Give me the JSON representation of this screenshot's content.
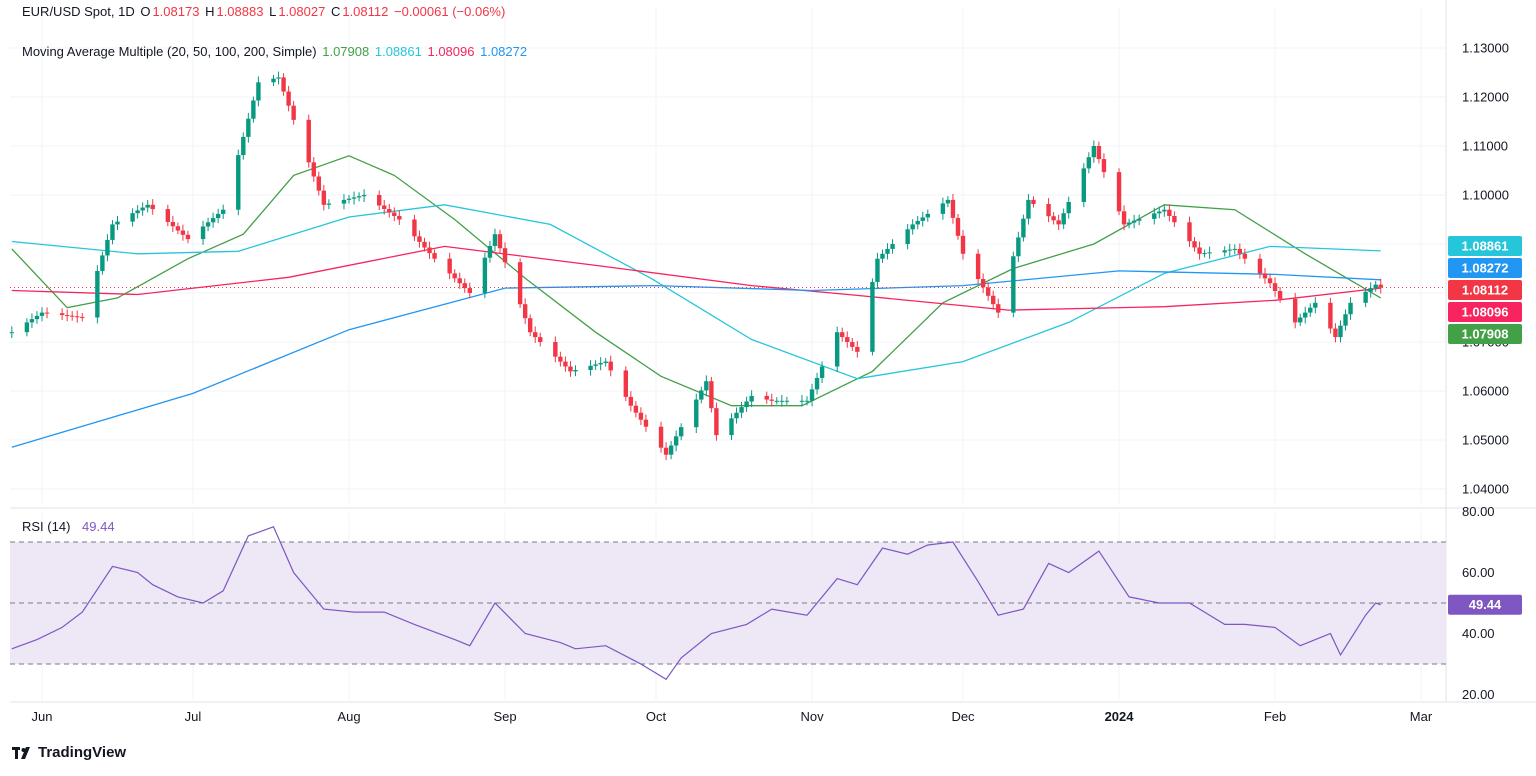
{
  "header": {
    "symbol": "EUR/USD Spot, 1D",
    "open_label": "O",
    "open": "1.08173",
    "high_label": "H",
    "high": "1.08883",
    "low_label": "L",
    "low": "1.08027",
    "close_label": "C",
    "close": "1.08112",
    "change": "−0.00061 (−0.06%)",
    "ma_title": "Moving Average Multiple (20, 50, 100, 200, Simple)",
    "ma_values": [
      "1.07908",
      "1.08861",
      "1.08096",
      "1.08272"
    ]
  },
  "rsi_header": {
    "title": "RSI (14)",
    "value": "49.44"
  },
  "colors": {
    "up": "#089981",
    "down": "#f23645",
    "ma20": "#43a047",
    "ma50": "#26c6da",
    "ma100": "#f7245f",
    "ma200": "#2196f3",
    "rsi": "#7e57c2",
    "rsi_band": "#ede7f6"
  },
  "chart_data": [
    {
      "type": "candlestick",
      "title": "EUR/USD Spot, 1D",
      "ylim": [
        1.035,
        1.135
      ],
      "yticks": [
        "1.13000",
        "1.12000",
        "1.11000",
        "1.10000",
        "1.09000",
        "1.08000",
        "1.07000",
        "1.06000",
        "1.05000",
        "1.04000"
      ],
      "ytick_values": [
        1.13,
        1.12,
        1.11,
        1.1,
        1.09,
        1.08,
        1.07,
        1.06,
        1.05,
        1.04
      ],
      "xticks": [
        "Jun",
        "Jul",
        "Aug",
        "Sep",
        "Oct",
        "Nov",
        "Dec",
        "2024",
        "Feb",
        "Mar"
      ],
      "xtick_dates": [
        "2023-06-01",
        "2023-07-01",
        "2023-08-01",
        "2023-09-01",
        "2023-10-01",
        "2023-11-01",
        "2023-12-01",
        "2024-01-01",
        "2024-02-01",
        "2024-03-01"
      ],
      "x_start_date": "2023-05-26",
      "close_line": 1.08112,
      "price_labels": [
        {
          "text": "1.08861",
          "value": 1.08861,
          "color": "#26c6da"
        },
        {
          "text": "1.08272",
          "value": 1.08272,
          "color": "#2196f3"
        },
        {
          "text": "1.08112",
          "value": 1.08112,
          "color": "#f23645"
        },
        {
          "text": "1.08096",
          "value": 1.08096,
          "color": "#f7245f"
        },
        {
          "text": "1.07908",
          "value": 1.07908,
          "color": "#43a047"
        }
      ],
      "close_series": [
        {
          "date": "2023-05-26",
          "close": 1.072
        },
        {
          "date": "2023-06-01",
          "close": 1.076
        },
        {
          "date": "2023-06-09",
          "close": 1.075
        },
        {
          "date": "2023-06-15",
          "close": 1.094
        },
        {
          "date": "2023-06-22",
          "close": 1.098
        },
        {
          "date": "2023-06-30",
          "close": 1.091
        },
        {
          "date": "2023-07-07",
          "close": 1.097
        },
        {
          "date": "2023-07-14",
          "close": 1.123
        },
        {
          "date": "2023-07-18",
          "close": 1.124
        },
        {
          "date": "2023-07-27",
          "close": 1.098
        },
        {
          "date": "2023-08-04",
          "close": 1.1
        },
        {
          "date": "2023-08-11",
          "close": 1.095
        },
        {
          "date": "2023-08-18",
          "close": 1.087
        },
        {
          "date": "2023-08-25",
          "close": 1.08
        },
        {
          "date": "2023-08-30",
          "close": 1.092
        },
        {
          "date": "2023-09-06",
          "close": 1.072
        },
        {
          "date": "2023-09-14",
          "close": 1.064
        },
        {
          "date": "2023-09-21",
          "close": 1.066
        },
        {
          "date": "2023-09-26",
          "close": 1.057
        },
        {
          "date": "2023-10-03",
          "close": 1.047
        },
        {
          "date": "2023-10-11",
          "close": 1.062
        },
        {
          "date": "2023-10-13",
          "close": 1.051
        },
        {
          "date": "2023-10-20",
          "close": 1.059
        },
        {
          "date": "2023-10-24",
          "close": 1.058
        },
        {
          "date": "2023-10-31",
          "close": 1.058
        },
        {
          "date": "2023-11-06",
          "close": 1.072
        },
        {
          "date": "2023-11-10",
          "close": 1.068
        },
        {
          "date": "2023-11-14",
          "close": 1.087
        },
        {
          "date": "2023-11-21",
          "close": 1.094
        },
        {
          "date": "2023-11-28",
          "close": 1.099
        },
        {
          "date": "2023-12-01",
          "close": 1.088
        },
        {
          "date": "2023-12-08",
          "close": 1.076
        },
        {
          "date": "2023-12-14",
          "close": 1.099
        },
        {
          "date": "2023-12-20",
          "close": 1.094
        },
        {
          "date": "2023-12-27",
          "close": 1.11
        },
        {
          "date": "2024-01-02",
          "close": 1.094
        },
        {
          "date": "2024-01-10",
          "close": 1.097
        },
        {
          "date": "2024-01-17",
          "close": 1.088
        },
        {
          "date": "2024-01-24",
          "close": 1.089
        },
        {
          "date": "2024-01-31",
          "close": 1.082
        },
        {
          "date": "2024-02-05",
          "close": 1.074
        },
        {
          "date": "2024-02-09",
          "close": 1.078
        },
        {
          "date": "2024-02-13",
          "close": 1.071
        },
        {
          "date": "2024-02-16",
          "close": 1.078
        },
        {
          "date": "2024-02-20",
          "close": 1.081
        },
        {
          "date": "2024-02-21",
          "close": 1.0817
        },
        {
          "date": "2024-02-22",
          "close": 1.0811
        }
      ],
      "series": [
        {
          "name": "MA 20",
          "points": [
            {
              "date": "2023-05-26",
              "value": 1.089
            },
            {
              "date": "2023-06-06",
              "value": 1.077
            },
            {
              "date": "2023-06-16",
              "value": 1.079
            },
            {
              "date": "2023-06-30",
              "value": 1.087
            },
            {
              "date": "2023-07-11",
              "value": 1.092
            },
            {
              "date": "2023-07-21",
              "value": 1.104
            },
            {
              "date": "2023-08-01",
              "value": 1.108
            },
            {
              "date": "2023-08-10",
              "value": 1.104
            },
            {
              "date": "2023-08-22",
              "value": 1.095
            },
            {
              "date": "2023-09-05",
              "value": 1.083
            },
            {
              "date": "2023-09-19",
              "value": 1.072
            },
            {
              "date": "2023-10-02",
              "value": 1.063
            },
            {
              "date": "2023-10-16",
              "value": 1.057
            },
            {
              "date": "2023-10-30",
              "value": 1.057
            },
            {
              "date": "2023-11-13",
              "value": 1.064
            },
            {
              "date": "2023-11-27",
              "value": 1.078
            },
            {
              "date": "2023-12-11",
              "value": 1.085
            },
            {
              "date": "2023-12-27",
              "value": 1.09
            },
            {
              "date": "2024-01-10",
              "value": 1.098
            },
            {
              "date": "2024-01-24",
              "value": 1.097
            },
            {
              "date": "2024-02-07",
              "value": 1.088
            },
            {
              "date": "2024-02-22",
              "value": 1.079
            }
          ]
        },
        {
          "name": "MA 50",
          "points": [
            {
              "date": "2023-05-26",
              "value": 1.0905
            },
            {
              "date": "2023-06-20",
              "value": 1.088
            },
            {
              "date": "2023-07-10",
              "value": 1.0885
            },
            {
              "date": "2023-08-01",
              "value": 1.0955
            },
            {
              "date": "2023-08-20",
              "value": 1.098
            },
            {
              "date": "2023-09-10",
              "value": 1.094
            },
            {
              "date": "2023-09-30",
              "value": 1.083
            },
            {
              "date": "2023-10-20",
              "value": 1.0705
            },
            {
              "date": "2023-11-10",
              "value": 1.0625
            },
            {
              "date": "2023-12-01",
              "value": 1.066
            },
            {
              "date": "2023-12-22",
              "value": 1.074
            },
            {
              "date": "2024-01-10",
              "value": 1.084
            },
            {
              "date": "2024-01-31",
              "value": 1.0895
            },
            {
              "date": "2024-02-22",
              "value": 1.0886
            }
          ]
        },
        {
          "name": "MA 100",
          "points": [
            {
              "date": "2023-05-26",
              "value": 1.0805
            },
            {
              "date": "2023-06-20",
              "value": 1.0797
            },
            {
              "date": "2023-07-20",
              "value": 1.0832
            },
            {
              "date": "2023-08-20",
              "value": 1.0895
            },
            {
              "date": "2023-09-20",
              "value": 1.0855
            },
            {
              "date": "2023-10-20",
              "value": 1.0815
            },
            {
              "date": "2023-11-10",
              "value": 1.0795
            },
            {
              "date": "2023-12-10",
              "value": 1.0765
            },
            {
              "date": "2024-01-10",
              "value": 1.0772
            },
            {
              "date": "2024-02-01",
              "value": 1.0785
            },
            {
              "date": "2024-02-22",
              "value": 1.081
            }
          ]
        },
        {
          "name": "MA 200",
          "points": [
            {
              "date": "2023-05-26",
              "value": 1.0485
            },
            {
              "date": "2023-07-01",
              "value": 1.0595
            },
            {
              "date": "2023-08-01",
              "value": 1.0725
            },
            {
              "date": "2023-09-01",
              "value": 1.081
            },
            {
              "date": "2023-10-01",
              "value": 1.0815
            },
            {
              "date": "2023-11-01",
              "value": 1.0805
            },
            {
              "date": "2023-12-01",
              "value": 1.0815
            },
            {
              "date": "2024-01-01",
              "value": 1.0845
            },
            {
              "date": "2024-02-01",
              "value": 1.0838
            },
            {
              "date": "2024-02-22",
              "value": 1.0827
            }
          ]
        }
      ]
    },
    {
      "type": "line",
      "title": "RSI (14)",
      "ylim": [
        20,
        80
      ],
      "yticks": [
        "80.00",
        "60.00",
        "40.00",
        "20.00"
      ],
      "ytick_values": [
        80,
        60,
        40,
        20
      ],
      "bands": [
        30,
        50,
        70
      ],
      "last_value_label": "49.44",
      "series": [
        {
          "name": "RSI (14)",
          "points": [
            {
              "date": "2023-05-26",
              "value": 35
            },
            {
              "date": "2023-05-31",
              "value": 38
            },
            {
              "date": "2023-06-05",
              "value": 42
            },
            {
              "date": "2023-06-09",
              "value": 47
            },
            {
              "date": "2023-06-15",
              "value": 62
            },
            {
              "date": "2023-06-20",
              "value": 60
            },
            {
              "date": "2023-06-23",
              "value": 56
            },
            {
              "date": "2023-06-28",
              "value": 52
            },
            {
              "date": "2023-07-03",
              "value": 50
            },
            {
              "date": "2023-07-07",
              "value": 54
            },
            {
              "date": "2023-07-12",
              "value": 72
            },
            {
              "date": "2023-07-17",
              "value": 75
            },
            {
              "date": "2023-07-21",
              "value": 60
            },
            {
              "date": "2023-07-27",
              "value": 48
            },
            {
              "date": "2023-08-02",
              "value": 47
            },
            {
              "date": "2023-08-08",
              "value": 47
            },
            {
              "date": "2023-08-14",
              "value": 43
            },
            {
              "date": "2023-08-22",
              "value": 38
            },
            {
              "date": "2023-08-25",
              "value": 36
            },
            {
              "date": "2023-08-30",
              "value": 50
            },
            {
              "date": "2023-09-05",
              "value": 40
            },
            {
              "date": "2023-09-12",
              "value": 37
            },
            {
              "date": "2023-09-15",
              "value": 35
            },
            {
              "date": "2023-09-21",
              "value": 36
            },
            {
              "date": "2023-09-28",
              "value": 30
            },
            {
              "date": "2023-10-03",
              "value": 25
            },
            {
              "date": "2023-10-06",
              "value": 32
            },
            {
              "date": "2023-10-12",
              "value": 40
            },
            {
              "date": "2023-10-19",
              "value": 43
            },
            {
              "date": "2023-10-24",
              "value": 48
            },
            {
              "date": "2023-10-31",
              "value": 46
            },
            {
              "date": "2023-11-06",
              "value": 58
            },
            {
              "date": "2023-11-10",
              "value": 56
            },
            {
              "date": "2023-11-15",
              "value": 68
            },
            {
              "date": "2023-11-20",
              "value": 66
            },
            {
              "date": "2023-11-24",
              "value": 69
            },
            {
              "date": "2023-11-29",
              "value": 70
            },
            {
              "date": "2023-12-04",
              "value": 57
            },
            {
              "date": "2023-12-08",
              "value": 46
            },
            {
              "date": "2023-12-13",
              "value": 48
            },
            {
              "date": "2023-12-18",
              "value": 63
            },
            {
              "date": "2023-12-22",
              "value": 60
            },
            {
              "date": "2023-12-28",
              "value": 67
            },
            {
              "date": "2024-01-03",
              "value": 52
            },
            {
              "date": "2024-01-09",
              "value": 50
            },
            {
              "date": "2024-01-15",
              "value": 50
            },
            {
              "date": "2024-01-22",
              "value": 43
            },
            {
              "date": "2024-01-26",
              "value": 43
            },
            {
              "date": "2024-02-01",
              "value": 42
            },
            {
              "date": "2024-02-06",
              "value": 36
            },
            {
              "date": "2024-02-12",
              "value": 40
            },
            {
              "date": "2024-02-14",
              "value": 33
            },
            {
              "date": "2024-02-19",
              "value": 46
            },
            {
              "date": "2024-02-21",
              "value": 50
            },
            {
              "date": "2024-02-22",
              "value": 49.44
            }
          ]
        }
      ]
    }
  ],
  "footer": {
    "brand": "TradingView"
  }
}
